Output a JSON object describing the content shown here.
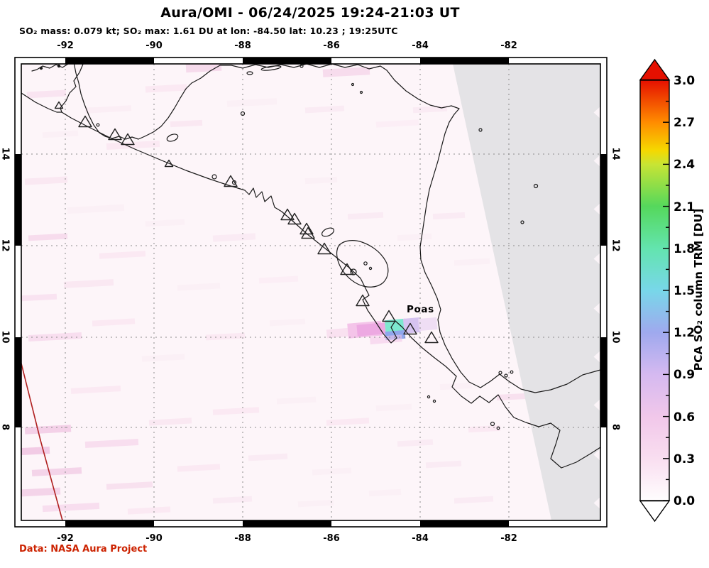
{
  "header": {
    "title": "Aura/OMI - 06/24/2025 19:24-21:03 UT",
    "subtitle": "SO₂ mass: 0.079 kt; SO₂ max: 1.61 DU at lon: -84.50 lat: 10.23 ; 19:25UTC"
  },
  "axes": {
    "lon_ticks": [
      "-92",
      "-90",
      "-88",
      "-86",
      "-84",
      "-82"
    ],
    "lat_ticks": [
      "14",
      "12",
      "10",
      "8"
    ]
  },
  "map": {
    "poas_label": "Poas",
    "background_color": "#fdf5f9",
    "no_data_color": "#e4e3e6",
    "coastline_color": "#1a1a1a",
    "gridline_color": "#8a8a8a",
    "orbit_edge_color": "#b02020",
    "plume_colors": {
      "faint_pink": "#f8dcee",
      "pink": "#f4c4e9",
      "magenta": "#eda9e2",
      "cyan": "#7de8cf",
      "blue": "#8fa6ec",
      "lavender": "#d6c3f0",
      "pale_lavender": "#ecd9f3"
    }
  },
  "colorbar": {
    "title": "PCA SO₂ column TRM [DU]",
    "tick_labels": [
      "3.0",
      "2.7",
      "2.4",
      "2.1",
      "1.8",
      "1.5",
      "1.2",
      "0.9",
      "0.6",
      "0.3",
      "0.0"
    ],
    "gradient_stops": [
      {
        "value": 3.0,
        "color": "#e51000"
      },
      {
        "value": 2.7,
        "color": "#ff8c00"
      },
      {
        "value": 2.5,
        "color": "#f5d800"
      },
      {
        "value": 2.4,
        "color": "#c8e434"
      },
      {
        "value": 2.1,
        "color": "#55d85c"
      },
      {
        "value": 1.8,
        "color": "#63e4ae"
      },
      {
        "value": 1.5,
        "color": "#78d7e9"
      },
      {
        "value": 1.2,
        "color": "#9fa9ee"
      },
      {
        "value": 0.9,
        "color": "#d5b9f0"
      },
      {
        "value": 0.6,
        "color": "#f1c7ea"
      },
      {
        "value": 0.3,
        "color": "#f9def0"
      },
      {
        "value": 0.0,
        "color": "#fffdfe"
      }
    ],
    "top_arrow_color": "#e51000",
    "bottom_arrow_color": "#ffffff"
  },
  "credit": {
    "text": "Data: NASA Aura Project",
    "color": "#cc2200"
  }
}
